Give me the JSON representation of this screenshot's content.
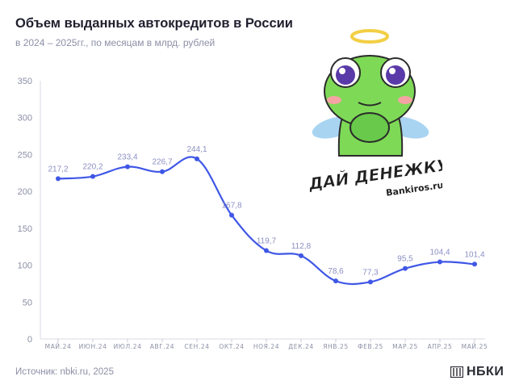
{
  "title": "Объем выданных автокредитов в России",
  "subtitle": "в 2024 – 2025гг., по месяцам в млрд. рублей",
  "source": "Источник: nbki.ru, 2025",
  "brand": "НБКИ",
  "sticker": {
    "line1": "ДАЙ ДЕНЕЖКУ",
    "line2": "Bankiros.ru"
  },
  "colors": {
    "line": "#3f57e6",
    "point": "#3f57e6",
    "label": "#8c8fc4",
    "axis": "#8c8fa6",
    "frog": "#7ed957",
    "wing": "#a9d4f1"
  },
  "chart_data": {
    "type": "line",
    "categories": [
      "МАЙ.24",
      "ИЮН.24",
      "ИЮЛ.24",
      "АВГ.24",
      "СЕН.24",
      "ОКТ.24",
      "НОЯ.24",
      "ДЕК.24",
      "ЯНВ.25",
      "ФЕВ.25",
      "МАР.25",
      "АПР.25",
      "МАЙ.25"
    ],
    "values": [
      217.2,
      220.2,
      233.4,
      226.7,
      244.1,
      167.8,
      119.7,
      112.8,
      78.6,
      77.3,
      95.5,
      104.4,
      101.4
    ],
    "value_labels": [
      "217,2",
      "220,2",
      "233,4",
      "226,7",
      "244,1",
      "167,8",
      "119,7",
      "112,8",
      "78,6",
      "77,3",
      "95,5",
      "104,4",
      "101,4"
    ],
    "yticks": [
      0,
      50,
      100,
      150,
      200,
      250,
      300,
      350
    ],
    "ylim": [
      0,
      350
    ],
    "grid": false,
    "legend": "none"
  }
}
